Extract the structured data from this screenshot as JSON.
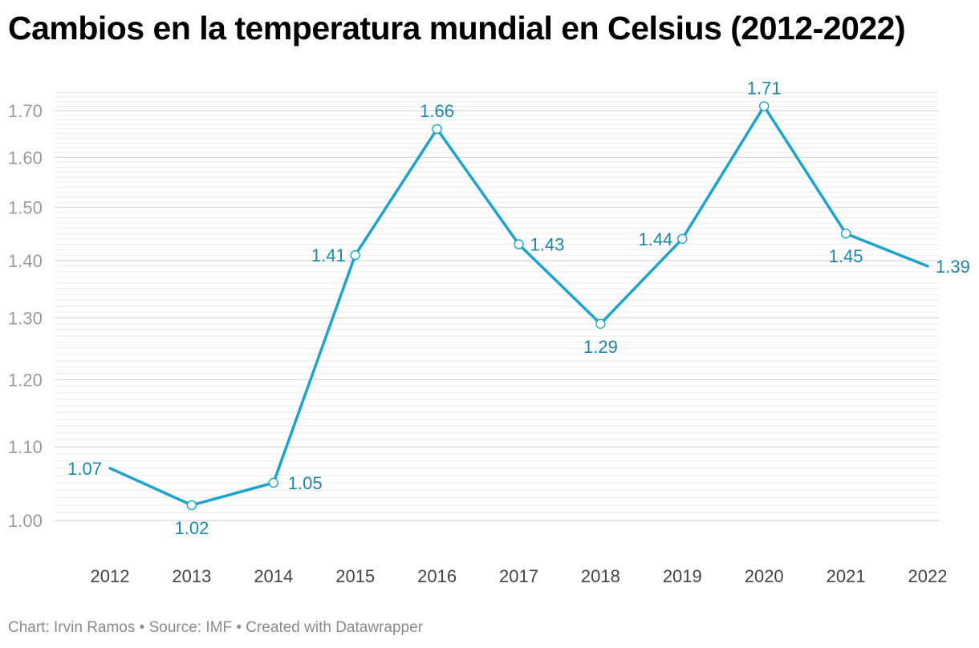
{
  "title": "Cambios en la temperatura mundial en Celsius (2012-2022)",
  "footer": "Chart: Irvin Ramos • Source: IMF • Created with Datawrapper",
  "colors": {
    "line": "#1ea3cc",
    "label": "#1f86a6",
    "grid": "#e4e4e4",
    "tick": "#9a9a9a"
  },
  "chart_data": {
    "type": "line",
    "title": "Cambios en la temperatura mundial en Celsius (2012-2022)",
    "xlabel": "",
    "ylabel": "",
    "x": [
      "2012",
      "2013",
      "2014",
      "2015",
      "2016",
      "2017",
      "2018",
      "2019",
      "2020",
      "2021",
      "2022"
    ],
    "series": [
      {
        "values": [
          1.07,
          1.02,
          1.05,
          1.41,
          1.66,
          1.43,
          1.29,
          1.44,
          1.71,
          1.45,
          1.39
        ]
      }
    ],
    "y_tick_labels": [
      "1.00",
      "1.10",
      "1.20",
      "1.30",
      "1.40",
      "1.50",
      "1.60",
      "1.70"
    ],
    "grid": true,
    "legend": "none"
  }
}
